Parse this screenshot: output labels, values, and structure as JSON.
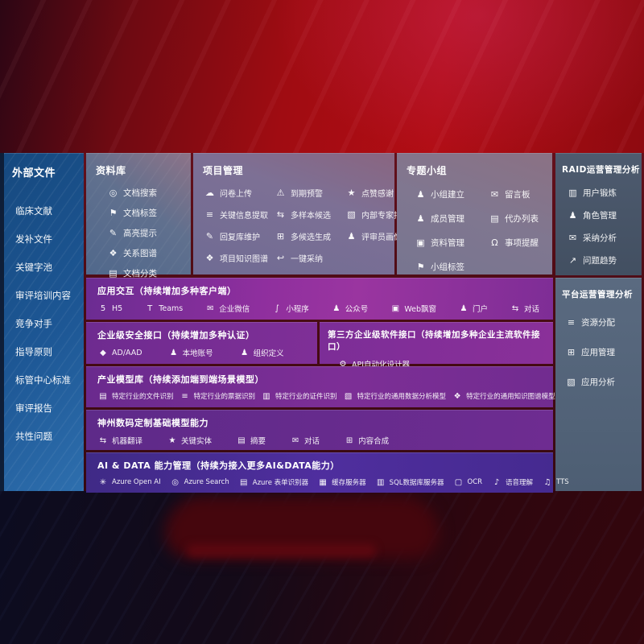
{
  "palette": {
    "background_red": "#a00c12",
    "sidebar_blue": "#1d5795",
    "panel_slate": "#42505f",
    "panel_gray_purple": "#7d7095",
    "row_purple": "#8f2f9e",
    "row_violet": "#4f2e9e",
    "text": "#ffffff"
  },
  "sidebar": {
    "title": "外部文件",
    "items": [
      {
        "label": "临床文献"
      },
      {
        "label": "发补文件"
      },
      {
        "label": "关键字池"
      },
      {
        "label": "审评培训内容"
      },
      {
        "label": "竞争对手"
      },
      {
        "label": "指导原则"
      },
      {
        "label": "标管中心标准"
      },
      {
        "label": "审评报告"
      },
      {
        "label": "共性问题"
      }
    ]
  },
  "panels": {
    "library": {
      "title": "资料库",
      "items": [
        {
          "icon": "doc-search-icon",
          "glyph": "◎",
          "label": "文档搜索"
        },
        {
          "icon": "doc-tag-icon",
          "glyph": "⚑",
          "label": "文档标签"
        },
        {
          "icon": "highlighter-icon",
          "glyph": "✎",
          "label": "高亮提示"
        },
        {
          "icon": "relation-graph-icon",
          "glyph": "❖",
          "label": "关系图谱"
        },
        {
          "icon": "doc-category-icon",
          "glyph": "▤",
          "label": "文档分类"
        }
      ]
    },
    "project": {
      "title": "项目管理",
      "items": [
        {
          "icon": "cloud-upload-icon",
          "glyph": "☁",
          "label": "问卷上传"
        },
        {
          "icon": "alarm-icon",
          "glyph": "⚠",
          "label": "到期预警"
        },
        {
          "icon": "thumbs-up-icon",
          "glyph": "★",
          "label": "点赞感谢"
        },
        {
          "icon": "key-info-extract-icon",
          "glyph": "≡",
          "label": "关键信息提取"
        },
        {
          "icon": "multi-sample-icon",
          "glyph": "⇆",
          "label": "多样本候选"
        },
        {
          "icon": "expert-rank-icon",
          "glyph": "▧",
          "label": "内部专家排名"
        },
        {
          "icon": "reply-lib-icon",
          "glyph": "✎",
          "label": "回复库维护"
        },
        {
          "icon": "multi-candidate-icon",
          "glyph": "⊞",
          "label": "多候选生成"
        },
        {
          "icon": "reviewer-portrait-icon",
          "glyph": "♟",
          "label": "评审员画像"
        },
        {
          "icon": "project-knowledge-graph-icon",
          "glyph": "❖",
          "label": "项目知识图谱"
        },
        {
          "icon": "one-click-adopt-icon",
          "glyph": "↩",
          "label": "一键采纳"
        }
      ]
    },
    "group": {
      "title": "专题小组",
      "items": [
        {
          "icon": "group-create-icon",
          "glyph": "♟",
          "label": "小组建立"
        },
        {
          "icon": "message-board-icon",
          "glyph": "✉",
          "label": "留言板"
        },
        {
          "icon": "member-manage-icon",
          "glyph": "♟",
          "label": "成员管理"
        },
        {
          "icon": "todo-list-icon",
          "glyph": "▤",
          "label": "代办列表"
        },
        {
          "icon": "data-manage-icon",
          "glyph": "▣",
          "label": "资料管理"
        },
        {
          "icon": "reminder-bell-icon",
          "glyph": "Ω",
          "label": "事项提醒"
        },
        {
          "icon": "group-tag-icon",
          "glyph": "⚑",
          "label": "小组标签"
        }
      ]
    },
    "raid": {
      "title": "RAID运营管理分析",
      "items": [
        {
          "icon": "user-card-icon",
          "glyph": "▥",
          "label": "用户锻炼"
        },
        {
          "icon": "role-manage-icon",
          "glyph": "♟",
          "label": "角色管理"
        },
        {
          "icon": "adoption-analysis-icon",
          "glyph": "✉",
          "label": "采纳分析"
        },
        {
          "icon": "issue-trend-icon",
          "glyph": "↗",
          "label": "问题趋势"
        }
      ]
    },
    "platform": {
      "title": "平台运营管理分析",
      "items": [
        {
          "icon": "resource-allocation-icon",
          "glyph": "≡",
          "label": "资源分配"
        },
        {
          "icon": "app-manage-icon",
          "glyph": "⊞",
          "label": "应用管理"
        },
        {
          "icon": "app-analysis-icon",
          "glyph": "▧",
          "label": "应用分析"
        }
      ]
    }
  },
  "rows": {
    "interaction": {
      "title": "应用交互（持续增加多种客户端）",
      "items": [
        {
          "icon": "h5-icon",
          "glyph": "5",
          "label": "H5"
        },
        {
          "icon": "teams-icon",
          "glyph": "T",
          "label": "Teams"
        },
        {
          "icon": "wechat-work-icon",
          "glyph": "✉",
          "label": "企业微信"
        },
        {
          "icon": "miniprogram-icon",
          "glyph": "∫",
          "label": "小程序"
        },
        {
          "icon": "official-account-icon",
          "glyph": "♟",
          "label": "公众号"
        },
        {
          "icon": "web-popup-icon",
          "glyph": "▣",
          "label": "Web飘窗"
        },
        {
          "icon": "portal-icon",
          "glyph": "♟",
          "label": "门户"
        },
        {
          "icon": "dialog-icon",
          "glyph": "⇆",
          "label": "对话"
        }
      ]
    },
    "security": {
      "title": "企业级安全接口（持续增加多种认证）",
      "items": [
        {
          "icon": "ad-aad-icon",
          "glyph": "◆",
          "label": "AD/AAD"
        },
        {
          "icon": "local-account-icon",
          "glyph": "♟",
          "label": "本地账号"
        },
        {
          "icon": "org-define-icon",
          "glyph": "♟",
          "label": "组织定义"
        }
      ]
    },
    "thirdparty": {
      "title": "第三方企业级软件接口（持续增加多种企业主流软件接口）",
      "items": [
        {
          "icon": "api-designer-icon",
          "glyph": "⚙",
          "label": "API自动化设计器"
        }
      ]
    },
    "industry": {
      "title": "产业模型库（持续添加端到端场景模型）",
      "items": [
        {
          "icon": "file-recognition-icon",
          "glyph": "▤",
          "label": "特定行业的文件识别"
        },
        {
          "icon": "invoice-recognition-icon",
          "glyph": "≡",
          "label": "特定行业的票据识别"
        },
        {
          "icon": "id-recognition-icon",
          "glyph": "▥",
          "label": "特定行业的证件识别"
        },
        {
          "icon": "data-analysis-model-icon",
          "glyph": "▧",
          "label": "特定行业的通用数据分析模型"
        },
        {
          "icon": "knowledge-graph-model-icon",
          "glyph": "❖",
          "label": "特定行业的通用知识图谱模型"
        }
      ]
    },
    "base_models": {
      "title": "神州数码定制基础模型能力",
      "items": [
        {
          "icon": "machine-translate-icon",
          "glyph": "⇆",
          "label": "机器翻译"
        },
        {
          "icon": "key-entity-icon",
          "glyph": "★",
          "label": "关键实体"
        },
        {
          "icon": "summary-icon",
          "glyph": "▤",
          "label": "摘要"
        },
        {
          "icon": "dialog-icon",
          "glyph": "✉",
          "label": "对话"
        },
        {
          "icon": "content-compose-icon",
          "glyph": "⊞",
          "label": "内容合成"
        }
      ]
    },
    "ai_data": {
      "title": "AI & DATA 能力管理（持续为接入更多AI&DATA能力）",
      "items": [
        {
          "icon": "azure-openai-icon",
          "glyph": "✳",
          "label": "Azure Open AI"
        },
        {
          "icon": "azure-search-icon",
          "glyph": "◎",
          "label": "Azure Search"
        },
        {
          "icon": "form-recognizer-icon",
          "glyph": "▤",
          "label": "Azure 表单识别器"
        },
        {
          "icon": "cache-server-icon",
          "glyph": "▦",
          "label": "缓存服务器"
        },
        {
          "icon": "sql-server-icon",
          "glyph": "▥",
          "label": "SQL数据库服务器"
        },
        {
          "icon": "ocr-icon",
          "glyph": "▢",
          "label": "OCR"
        },
        {
          "icon": "speech-understanding-icon",
          "glyph": "♪",
          "label": "语音理解"
        },
        {
          "icon": "tts-icon",
          "glyph": "♫",
          "label": "TTS"
        }
      ]
    }
  }
}
